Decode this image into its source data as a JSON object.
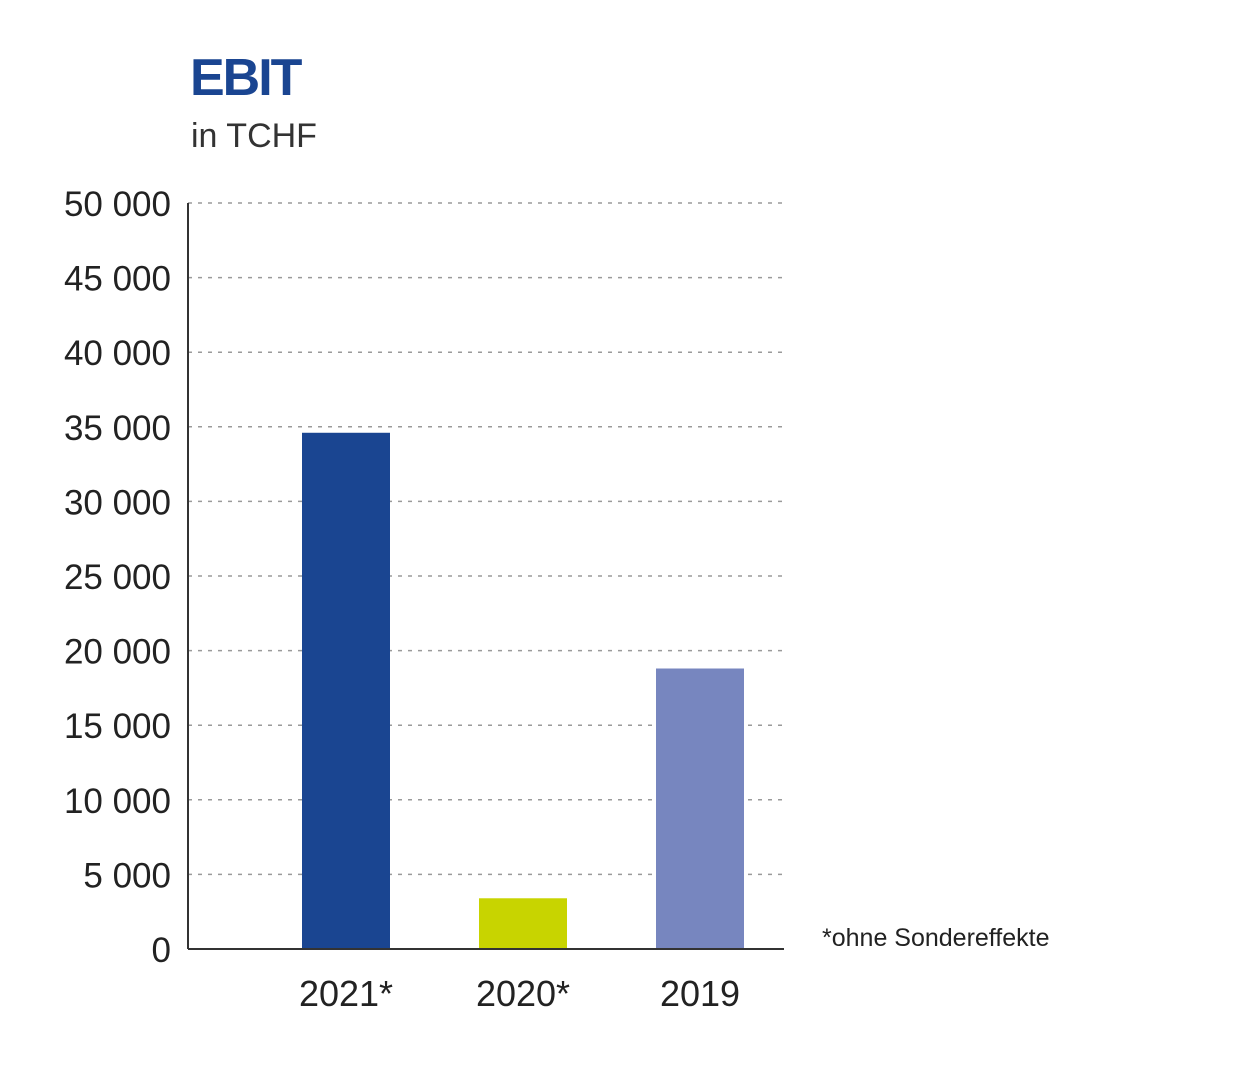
{
  "chart_data": {
    "type": "bar",
    "title": "EBIT",
    "subtitle": "in TCHF",
    "categories": [
      "2021*",
      "2020*",
      "2019"
    ],
    "values": [
      34600,
      3400,
      18800
    ],
    "colors": [
      "#1a4591",
      "#c8d400",
      "#7786bf"
    ],
    "ylim": [
      0,
      50000
    ],
    "yticks": [
      0,
      5000,
      10000,
      15000,
      20000,
      25000,
      30000,
      35000,
      40000,
      45000,
      50000
    ],
    "ytick_labels": [
      "0",
      "5 000",
      "10 000",
      "15 000",
      "20 000",
      "25 000",
      "30 000",
      "35 000",
      "40 000",
      "45 000",
      "50 000"
    ],
    "grid": true,
    "footnote": "*ohne Sondereffekte"
  }
}
